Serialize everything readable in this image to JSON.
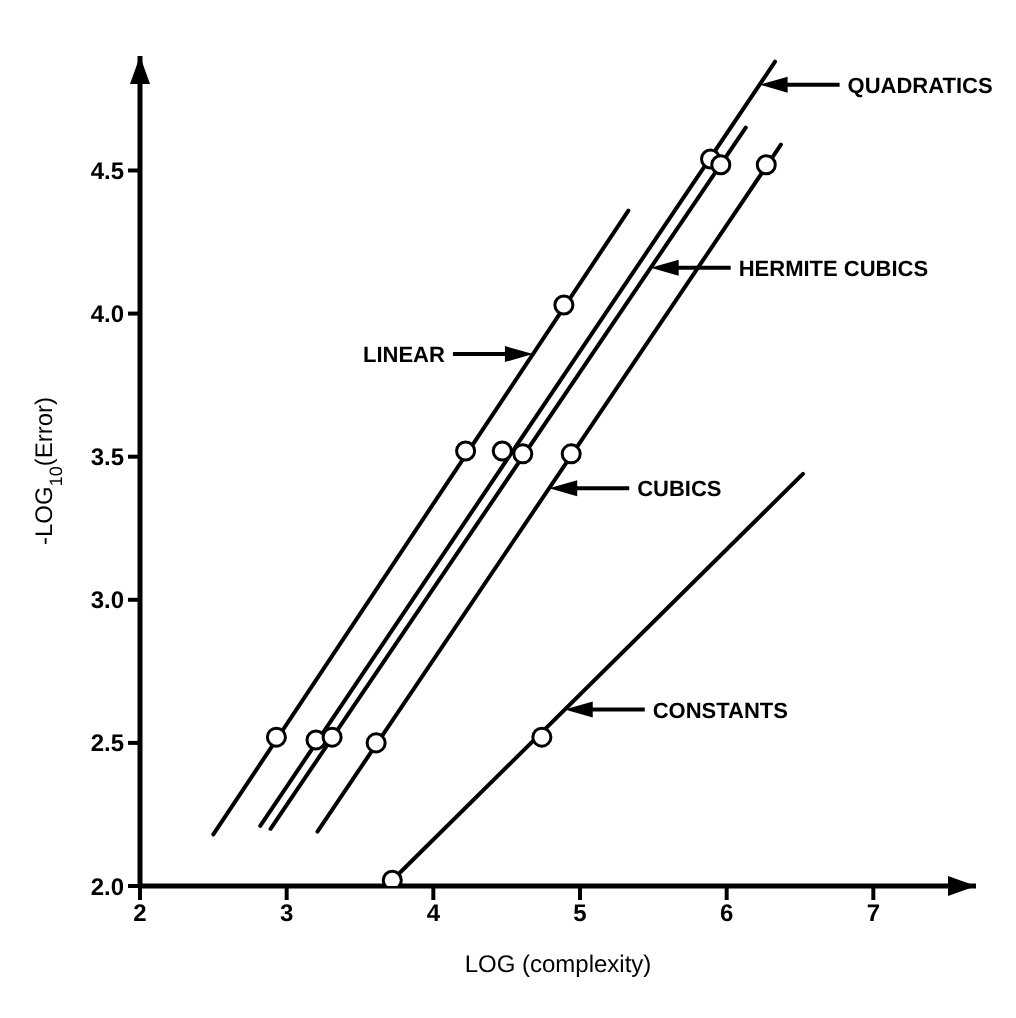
{
  "chart_data": {
    "type": "line",
    "xlabel": "LOG (complexity)",
    "ylabel": "-LOG$_{10}$(Error)",
    "xlim": [
      2,
      7.7
    ],
    "ylim": [
      2,
      4.9
    ],
    "xticks": [
      2,
      3,
      4,
      5,
      6,
      7
    ],
    "yticks": [
      {
        "value": 2,
        "label": "2.0"
      },
      {
        "value": 2.5,
        "label": "2.5"
      },
      {
        "value": 3,
        "label": "3.0"
      },
      {
        "value": 3.5,
        "label": "3.5"
      },
      {
        "value": 4,
        "label": "4.0"
      },
      {
        "value": 4.5,
        "label": "4.5"
      }
    ],
    "grid": false,
    "legend": false,
    "series": [
      {
        "marker": "none",
        "color": "#000000",
        "x": [
          2.82,
          6.33
        ],
        "values": [
          2.21,
          4.88
        ]
      },
      {
        "marker": "none",
        "color": "#000000",
        "x": [
          2.89,
          6.13
        ],
        "values": [
          2.2,
          4.65
        ]
      },
      {
        "marker": "none",
        "color": "#000000",
        "x": [
          2.5,
          5.33
        ],
        "values": [
          2.18,
          4.36
        ]
      },
      {
        "marker": "none",
        "color": "#000000",
        "x": [
          3.21,
          6.37
        ],
        "values": [
          2.19,
          4.59
        ]
      },
      {
        "marker": "none",
        "color": "#000000",
        "x": [
          3.72,
          6.52
        ],
        "values": [
          2.02,
          3.44
        ]
      },
      {
        "type": "scatter",
        "marker": "circle",
        "color": "#000000",
        "x": [
          3.2,
          4.47,
          5.89
        ],
        "values": [
          2.51,
          3.52,
          4.54
        ]
      },
      {
        "type": "scatter",
        "marker": "circle",
        "color": "#000000",
        "x": [
          3.31,
          4.61,
          5.96
        ],
        "values": [
          2.52,
          3.51,
          4.52
        ]
      },
      {
        "type": "scatter",
        "marker": "circle",
        "color": "#000000",
        "x": [
          2.93,
          4.22,
          4.89
        ],
        "values": [
          2.52,
          3.52,
          4.03
        ]
      },
      {
        "type": "scatter",
        "marker": "circle",
        "color": "#000000",
        "x": [
          3.61,
          4.94,
          6.27
        ],
        "values": [
          2.5,
          3.51,
          4.52
        ]
      },
      {
        "type": "scatter",
        "marker": "circle",
        "color": "#000000",
        "x": [
          3.72,
          4.74
        ],
        "values": [
          2.02,
          2.52
        ]
      }
    ],
    "annotations": [
      "QUADRATICS",
      "HERMITE CUBICS",
      "LINEAR",
      "CUBICS",
      "CONSTANTS"
    ]
  }
}
